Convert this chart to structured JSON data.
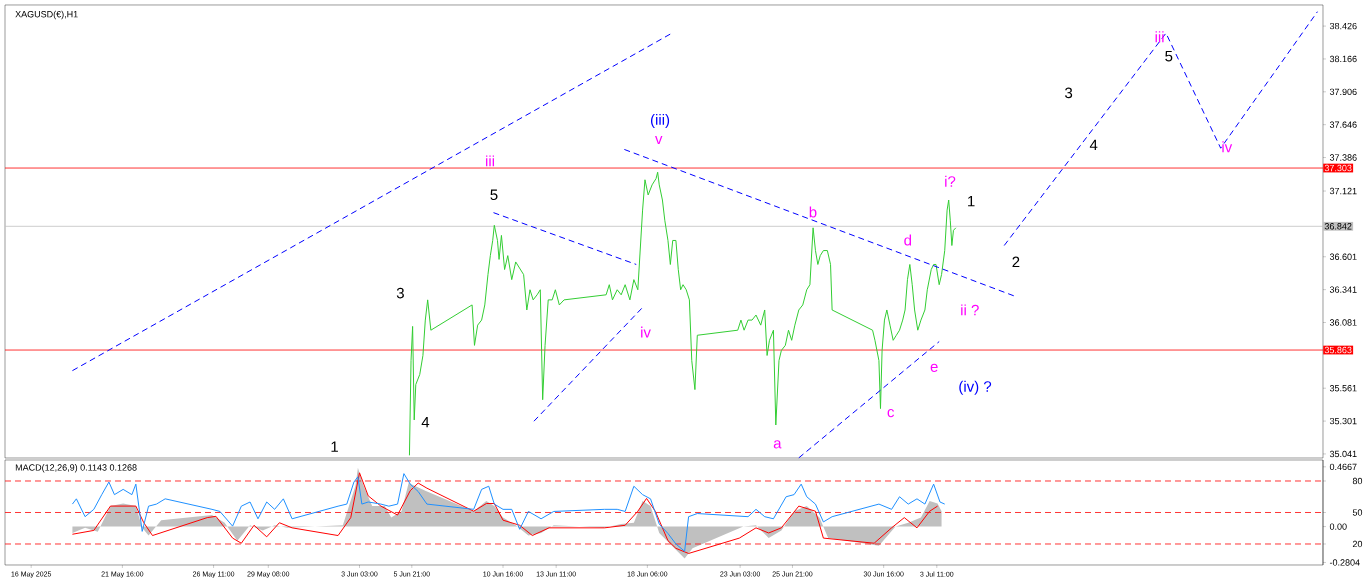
{
  "chart_data": [
    {
      "type": "line",
      "title": "XAGUSD(€),H1",
      "xlim": [
        "2025-05-15T12:00",
        "2025-07-23T18:00"
      ],
      "ylim": [
        35.009,
        38.593
      ],
      "tick_labels": "y",
      "yticks": [
        38.426,
        38.166,
        37.906,
        37.646,
        37.386,
        37.121,
        36.601,
        36.341,
        36.081,
        35.561,
        35.301,
        35.041
      ],
      "series": [
        {
          "color": "#32cd32",
          "x": [
            "2025-06-05T18:00",
            "2025-06-05T20:00",
            "2025-06-05T22:00",
            "2025-06-06T00:00",
            "2025-06-06T02:00",
            "2025-06-06T07:00",
            "2025-06-06T11:00",
            "2025-06-06T14:00",
            "2025-06-06T17:00",
            "2025-06-06T21:00",
            "2025-06-09T01:00",
            "2025-06-09T04:00",
            "2025-06-09T08:00",
            "2025-06-09T13:00",
            "2025-06-09T17:00",
            "2025-06-09T21:00",
            "2025-06-10T00:00",
            "2025-06-10T03:00",
            "2025-06-10T05:00",
            "2025-06-10T09:00",
            "2025-06-10T11:00",
            "2025-06-10T14:00",
            "2025-06-10T18:00",
            "2025-06-10T22:00",
            "2025-06-11T03:00",
            "2025-06-11T08:00",
            "2025-06-11T13:00",
            "2025-06-11T18:00",
            "2025-06-11T22:00",
            "2025-06-12T02:00",
            "2025-06-12T06:00",
            "2025-06-12T11:00",
            "2025-06-12T15:00",
            "2025-06-12T18:00",
            "2025-06-12T21:00",
            "2025-06-13T01:00",
            "2025-06-13T06:00",
            "2025-06-13T10:00",
            "2025-06-13T15:00",
            "2025-06-13T21:00",
            "2025-06-16T02:00",
            "2025-06-16T06:00",
            "2025-06-16T10:00",
            "2025-06-16T16:00",
            "2025-06-16T21:00",
            "2025-06-17T02:00",
            "2025-06-17T08:00",
            "2025-06-17T13:00",
            "2025-06-17T18:00",
            "2025-06-18T00:00",
            "2025-06-18T03:00",
            "2025-06-18T07:00",
            "2025-06-18T12:00",
            "2025-06-18T17:00",
            "2025-06-18T19:00",
            "2025-06-18T21:00",
            "2025-06-19T01:00",
            "2025-06-19T04:00",
            "2025-06-19T08:00",
            "2025-06-19T11:00",
            "2025-06-19T14:00",
            "2025-06-19T18:00",
            "2025-06-19T21:00",
            "2025-06-20T00:00",
            "2025-06-20T03:00",
            "2025-06-20T07:00",
            "2025-06-20T11:00",
            "2025-06-20T14:00",
            "2025-06-20T18:00",
            "2025-06-20T21:00",
            "2025-06-23T00:00",
            "2025-06-23T04:00",
            "2025-06-23T08:00",
            "2025-06-23T13:00",
            "2025-06-23T18:00",
            "2025-06-23T23:00",
            "2025-06-24T05:00",
            "2025-06-24T10:00",
            "2025-06-24T13:00",
            "2025-06-24T16:00",
            "2025-06-24T21:00",
            "2025-06-25T00:00",
            "2025-06-25T04:00",
            "2025-06-25T07:00",
            "2025-06-25T12:00",
            "2025-06-25T16:00",
            "2025-06-25T20:00",
            "2025-06-26T00:00",
            "2025-06-26T05:00",
            "2025-06-26T10:00",
            "2025-06-26T15:00",
            "2025-06-26T19:00",
            "2025-06-26T23:00",
            "2025-06-27T02:00",
            "2025-06-27T05:00",
            "2025-06-27T08:00",
            "2025-06-27T12:00",
            "2025-06-27T17:00",
            "2025-06-27T21:00",
            "2025-06-27T23:00",
            "2025-06-30T02:00",
            "2025-06-30T05:00",
            "2025-06-30T10:00",
            "2025-06-30T12:00",
            "2025-06-30T14:00",
            "2025-06-30T17:00",
            "2025-06-30T20:00",
            "2025-07-01T00:00",
            "2025-07-01T04:00",
            "2025-07-01T08:00",
            "2025-07-01T12:00",
            "2025-07-01T16:00",
            "2025-07-01T19:00",
            "2025-07-01T22:00",
            "2025-07-02T01:00",
            "2025-07-02T04:00",
            "2025-07-02T07:00",
            "2025-07-02T11:00",
            "2025-07-02T15:00",
            "2025-07-02T20:00",
            "2025-07-02T23:00",
            "2025-07-03T04:00",
            "2025-07-03T07:00",
            "2025-07-03T10:00",
            "2025-07-03T14:00",
            "2025-07-03T17:00",
            "2025-07-03T21:00",
            "2025-07-04T00:00",
            "2025-07-04T02:00",
            "2025-07-04T04:00",
            "2025-07-04T06:00",
            "2025-07-04T08:00",
            "2025-07-04T11:00"
          ],
          "values": [
            35.03,
            35.78,
            36.05,
            35.31,
            35.59,
            35.67,
            35.82,
            36.1,
            36.26,
            36.02,
            36.22,
            35.9,
            36.06,
            36.1,
            36.22,
            36.46,
            36.61,
            36.73,
            36.85,
            36.73,
            36.58,
            36.77,
            36.5,
            36.61,
            36.42,
            36.56,
            36.51,
            36.46,
            36.18,
            36.34,
            36.26,
            36.3,
            36.34,
            35.47,
            35.9,
            36.26,
            36.26,
            36.34,
            36.22,
            36.26,
            36.3,
            36.38,
            36.26,
            36.34,
            36.3,
            36.38,
            36.26,
            36.42,
            36.34,
            36.97,
            37.21,
            37.09,
            37.17,
            37.22,
            37.27,
            37.17,
            37.05,
            36.89,
            36.73,
            36.54,
            36.73,
            36.73,
            36.5,
            36.34,
            36.38,
            36.34,
            36.26,
            35.78,
            35.55,
            35.98,
            36.02,
            36.1,
            36.02,
            36.1,
            36.1,
            36.14,
            36.06,
            36.18,
            35.82,
            35.94,
            36.02,
            35.27,
            35.78,
            35.86,
            35.9,
            36.02,
            35.94,
            36.06,
            36.18,
            36.22,
            36.34,
            36.38,
            36.83,
            36.65,
            36.54,
            36.61,
            36.65,
            36.65,
            36.54,
            36.18,
            36.02,
            35.94,
            35.78,
            35.4,
            35.86,
            36.1,
            36.18,
            36.06,
            35.94,
            35.98,
            36.02,
            36.1,
            36.18,
            36.42,
            36.54,
            36.38,
            36.18,
            36.02,
            36.1,
            36.18,
            36.34,
            36.5,
            36.54,
            36.54,
            36.38,
            36.46,
            36.65,
            36.97,
            37.05,
            36.89,
            36.69,
            36.81,
            36.83
          ]
        },
        {
          "color": "#0000ff",
          "line_style": "dashed",
          "x": [
            "2025-05-19T01:00",
            "2025-06-19T13:00"
          ],
          "values": [
            35.7,
            38.37
          ]
        },
        {
          "color": "#0000ff",
          "line_style": "dashed",
          "x": [
            "2025-06-10T04:00",
            "2025-06-17T16:00"
          ],
          "values": [
            36.95,
            36.54
          ]
        },
        {
          "color": "#0000ff",
          "line_style": "dashed",
          "x": [
            "2025-06-12T07:00",
            "2025-06-18T00:00"
          ],
          "values": [
            35.3,
            36.2
          ]
        },
        {
          "color": "#0000ff",
          "line_style": "dashed",
          "x": [
            "2025-06-17T01:00",
            "2025-07-07T13:00"
          ],
          "values": [
            37.45,
            36.29
          ]
        },
        {
          "color": "#0000ff",
          "line_style": "dashed",
          "x": [
            "2025-06-26T05:00",
            "2025-07-03T14:00"
          ],
          "values": [
            35.01,
            35.93
          ]
        },
        {
          "color": "#0000ff",
          "line_style": "dashed",
          "x": [
            "2025-07-07T00:00",
            "2025-07-15T12:00",
            "2025-07-18T09:00",
            "2025-07-23T11:00"
          ],
          "values": [
            36.69,
            38.37,
            37.46,
            38.54
          ]
        }
      ],
      "ref_lines": [
        {
          "axis": "y",
          "value": 37.303,
          "label": "37.303",
          "color": "#ff0000"
        },
        {
          "axis": "y",
          "value": 35.863,
          "label": "35.863",
          "color": "#ff0000"
        },
        {
          "axis": "y",
          "value": 36.842,
          "label": "36.842",
          "color": "#c0c0c0"
        }
      ],
      "annotations": [
        "1",
        "4",
        "3",
        "5",
        "iii",
        "iv",
        "(iii)",
        "v",
        "b",
        "a",
        "c",
        "d",
        "e",
        "(iv) ?",
        "i?",
        "1",
        "2",
        "ii ?",
        "3",
        "4",
        "iii",
        "5",
        "iv"
      ]
    },
    {
      "type": "line",
      "title": "MACD(12,26,9) 0.1143 0.1268",
      "xlim": [
        "2025-05-15T12:00",
        "2025-07-23T18:00"
      ],
      "ylim": [
        -0.3,
        0.52
      ],
      "y2lim": [
        0,
        100
      ],
      "xticks": [
        {
          "value": "2025-05-16T21:00",
          "label": "16 May 2025"
        },
        {
          "value": "2025-05-21T16:00",
          "label": "21 May 16:00"
        },
        {
          "value": "2025-05-26T11:00",
          "label": "26 May 11:00"
        },
        {
          "value": "2025-05-29T08:00",
          "label": "29 May 08:00"
        },
        {
          "value": "2025-06-03T03:00",
          "label": "3 Jun 03:00"
        },
        {
          "value": "2025-06-05T21:00",
          "label": "5 Jun 21:00"
        },
        {
          "value": "2025-06-10T16:00",
          "label": "10 Jun 16:00"
        },
        {
          "value": "2025-06-13T11:00",
          "label": "13 Jun 11:00"
        },
        {
          "value": "2025-06-18T06:00",
          "label": "18 Jun 06:00"
        },
        {
          "value": "2025-06-23T03:00",
          "label": "23 Jun 03:00"
        },
        {
          "value": "2025-06-25T21:00",
          "label": "25 Jun 21:00"
        },
        {
          "value": "2025-06-30T16:00",
          "label": "30 Jun 16:00"
        },
        {
          "value": "2025-07-03T11:00",
          "label": "3 Jul 11:00"
        }
      ],
      "yticks": [
        0.4667,
        {
          "value": 0,
          "label": "0.00"
        },
        -0.2804
      ],
      "y2ticks": [
        80,
        50,
        20
      ],
      "series": [
        {
          "type": "area",
          "color": "#c0c0c0",
          "x": [
            "2025-05-19T01:00",
            "2025-05-19T17:00",
            "2025-05-20T09:00",
            "2025-05-21T01:00",
            "2025-05-21T17:00",
            "2025-05-22T09:00",
            "2025-05-22T17:00",
            "2025-05-23T01:00",
            "2025-05-23T17:00",
            "2025-05-26T09:00",
            "2025-05-27T01:00",
            "2025-05-27T17:00",
            "2025-05-28T09:00",
            "2025-05-29T01:00",
            "2025-05-29T16:00",
            "2025-05-30T08:00",
            "2025-06-02T06:00",
            "2025-06-02T22:00",
            "2025-06-03T01:00",
            "2025-06-03T08:00",
            "2025-06-03T19:00",
            "2025-06-04T11:00",
            "2025-06-04T19:00",
            "2025-06-05T08:00",
            "2025-06-05T17:00",
            "2025-06-06T00:00",
            "2025-06-06T14:00",
            "2025-06-09T03:00",
            "2025-06-09T19:00",
            "2025-06-10T05:00",
            "2025-06-10T16:00",
            "2025-06-11T08:00",
            "2025-06-12T00:00",
            "2025-06-12T16:00",
            "2025-06-13T08:00",
            "2025-06-16T00:00",
            "2025-06-16T21:00",
            "2025-06-17T13:00",
            "2025-06-18T00:00",
            "2025-06-18T10:00",
            "2025-06-18T21:00",
            "2025-06-19T13:00",
            "2025-06-20T05:00",
            "2025-06-20T15:00",
            "2025-06-23T07:00",
            "2025-06-23T23:00",
            "2025-06-24T15:00",
            "2025-06-25T07:00",
            "2025-06-25T23:00",
            "2025-06-26T15:00",
            "2025-06-27T07:00",
            "2025-06-27T18:00",
            "2025-06-30T10:00",
            "2025-07-01T07:00",
            "2025-07-01T23:00",
            "2025-07-02T15:00",
            "2025-07-03T02:00",
            "2025-07-03T12:00",
            "2025-07-03T17:00"
          ],
          "values": [
            -0.05,
            -0.01,
            -0.04,
            0.16,
            0.18,
            0.16,
            -0.01,
            -0.07,
            0.05,
            0.09,
            0.03,
            -0.11,
            0.01,
            -0.03,
            0.01,
            -0.01,
            0.01,
            0.32,
            0.46,
            0.32,
            0.16,
            0.16,
            0.07,
            0.12,
            0.34,
            0.32,
            0.28,
            0.12,
            0.2,
            0.16,
            0.07,
            0.01,
            -0.07,
            -0.05,
            0.01,
            -0.01,
            0.02,
            0.03,
            0.2,
            0.16,
            -0.05,
            -0.15,
            -0.25,
            -0.17,
            0.0,
            0.01,
            -0.09,
            -0.03,
            0.12,
            0.16,
            0.07,
            -0.09,
            -0.15,
            0.0,
            0.03,
            0.07,
            0.2,
            0.18,
            0.12
          ]
        },
        {
          "color": "#ff0000",
          "x": [
            "2025-05-19T01:00",
            "2025-05-20T04:00",
            "2025-05-21T01:00",
            "2025-05-22T09:00",
            "2025-05-22T19:00",
            "2025-05-23T06:00",
            "2025-05-26T03:00",
            "2025-05-26T14:00",
            "2025-05-27T11:00",
            "2025-05-27T22:00",
            "2025-05-28T14:00",
            "2025-05-29T06:00",
            "2025-05-29T22:00",
            "2025-05-30T14:00",
            "2025-06-02T00:00",
            "2025-06-02T16:00",
            "2025-06-03T03:00",
            "2025-06-03T14:00",
            "2025-06-04T06:00",
            "2025-06-05T03:00",
            "2025-06-05T19:00",
            "2025-06-06T05:00",
            "2025-06-06T16:00",
            "2025-06-09T03:00",
            "2025-06-09T19:00",
            "2025-06-10T05:00",
            "2025-06-10T16:00",
            "2025-06-11T13:00",
            "2025-06-12T05:00",
            "2025-06-13T02:00",
            "2025-06-16T00:00",
            "2025-06-17T02:00",
            "2025-06-17T18:00",
            "2025-06-18T05:00",
            "2025-06-18T16:00",
            "2025-06-19T08:00",
            "2025-06-19T18:00",
            "2025-06-20T10:00",
            "2025-06-23T02:00",
            "2025-06-23T23:00",
            "2025-06-24T15:00",
            "2025-06-25T07:00",
            "2025-06-26T05:00",
            "2025-06-27T02:00",
            "2025-06-27T12:00",
            "2025-06-30T04:00",
            "2025-07-01T02:00",
            "2025-07-01T18:00",
            "2025-07-02T10:00",
            "2025-07-03T02:00",
            "2025-07-03T12:00"
          ],
          "values": [
            -0.06,
            -0.03,
            0.16,
            0.16,
            0.03,
            -0.07,
            0.07,
            0.08,
            -0.09,
            -0.13,
            0.01,
            -0.08,
            0.03,
            -0.01,
            -0.07,
            0.07,
            0.42,
            0.24,
            0.16,
            0.09,
            0.28,
            0.34,
            0.3,
            0.12,
            0.18,
            0.18,
            0.05,
            0.01,
            -0.07,
            -0.01,
            -0.01,
            0.01,
            0.12,
            0.22,
            0.12,
            -0.11,
            -0.17,
            -0.21,
            -0.09,
            -0.01,
            -0.05,
            -0.01,
            0.16,
            0.12,
            -0.09,
            -0.13,
            -0.01,
            0.07,
            -0.01,
            0.12,
            0.16
          ]
        },
        {
          "color": "#1e90ff",
          "axis": "y2",
          "x": [
            "2025-05-19T01:00",
            "2025-05-19T06:00",
            "2025-05-19T17:00",
            "2025-05-20T04:00",
            "2025-05-20T14:00",
            "2025-05-20T23:00",
            "2025-05-21T06:00",
            "2025-05-21T17:00",
            "2025-05-22T04:00",
            "2025-05-22T09:00",
            "2025-05-22T17:00",
            "2025-05-23T01:00",
            "2025-05-23T11:00",
            "2025-05-23T22:00",
            "2025-05-26T09:00",
            "2025-05-26T19:00",
            "2025-05-27T11:00",
            "2025-05-27T22:00",
            "2025-05-28T09:00",
            "2025-05-28T19:00",
            "2025-05-29T06:00",
            "2025-05-29T16:00",
            "2025-05-30T03:00",
            "2025-05-30T14:00",
            "2025-06-02T00:00",
            "2025-06-02T11:00",
            "2025-06-02T20:00",
            "2025-06-03T01:00",
            "2025-06-03T06:00",
            "2025-06-03T14:00",
            "2025-06-04T06:00",
            "2025-06-04T16:00",
            "2025-06-05T03:00",
            "2025-06-05T11:00",
            "2025-06-05T19:00",
            "2025-06-06T05:00",
            "2025-06-06T16:00",
            "2025-06-09T03:00",
            "2025-06-09T13:00",
            "2025-06-09T22:00",
            "2025-06-10T05:00",
            "2025-06-10T16:00",
            "2025-06-11T03:00",
            "2025-06-11T13:00",
            "2025-06-12T00:00",
            "2025-06-12T16:00",
            "2025-06-13T08:00",
            "2025-06-16T00:00",
            "2025-06-16T16:00",
            "2025-06-17T02:00",
            "2025-06-17T13:00",
            "2025-06-18T00:00",
            "2025-06-18T10:00",
            "2025-06-18T21:00",
            "2025-06-19T08:00",
            "2025-06-19T18:00",
            "2025-06-20T05:00",
            "2025-06-20T10:00",
            "2025-06-20T21:00",
            "2025-06-23T13:00",
            "2025-06-23T23:00",
            "2025-06-24T10:00",
            "2025-06-24T21:00",
            "2025-06-25T13:00",
            "2025-06-25T23:00",
            "2025-06-26T08:00",
            "2025-06-26T15:00",
            "2025-06-27T02:00",
            "2025-06-27T12:00",
            "2025-06-27T23:00",
            "2025-06-30T10:00",
            "2025-07-01T02:00",
            "2025-07-01T12:00",
            "2025-07-01T23:00",
            "2025-07-02T10:00",
            "2025-07-02T20:00",
            "2025-07-03T07:00",
            "2025-07-03T15:00",
            "2025-07-03T21:00"
          ],
          "values": [
            58,
            63,
            46,
            53,
            67,
            79,
            67,
            72,
            67,
            77,
            32,
            56,
            58,
            63,
            53,
            51,
            37,
            56,
            60,
            44,
            60,
            53,
            63,
            44,
            56,
            58,
            79,
            84,
            58,
            60,
            58,
            56,
            58,
            87,
            77,
            70,
            58,
            53,
            72,
            75,
            58,
            53,
            53,
            34,
            51,
            44,
            51,
            53,
            53,
            51,
            75,
            67,
            63,
            39,
            30,
            20,
            13,
            46,
            49,
            46,
            53,
            46,
            44,
            65,
            67,
            77,
            65,
            58,
            41,
            46,
            58,
            53,
            65,
            58,
            63,
            58,
            77,
            60,
            58
          ]
        }
      ],
      "ref_lines": [
        {
          "axis": "y2",
          "value": 80,
          "color": "#ff0000",
          "line_style": "dashed"
        },
        {
          "axis": "y2",
          "value": 50,
          "color": "#ff0000",
          "line_style": "dashed"
        },
        {
          "axis": "y2",
          "value": 20,
          "color": "#ff0000",
          "line_style": "dashed"
        }
      ]
    }
  ]
}
